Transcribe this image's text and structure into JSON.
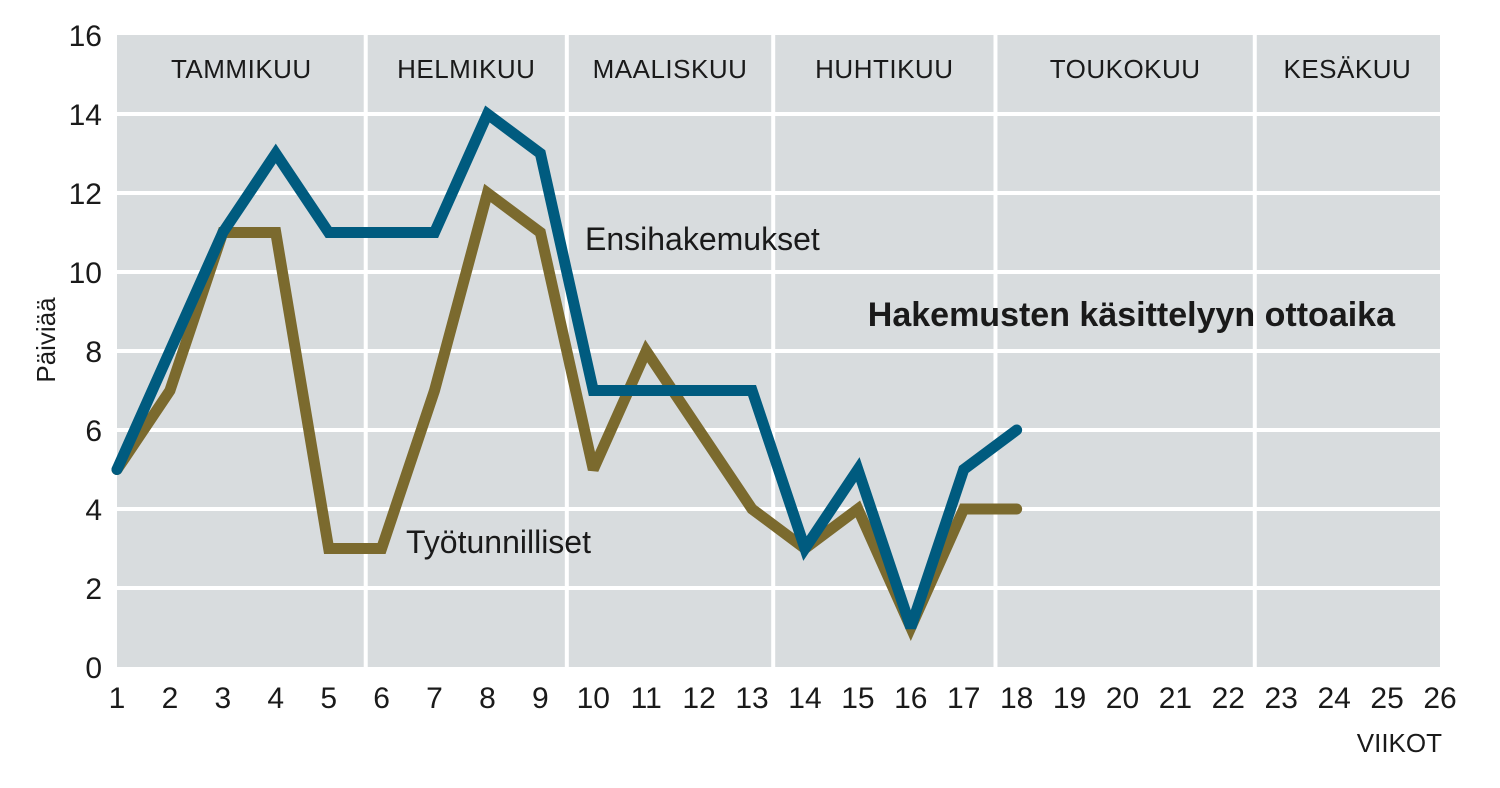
{
  "chart_data": {
    "type": "line",
    "title": "Hakemusten käsittelyyn ottoaika",
    "xlabel": "VIIKOT",
    "ylabel": "Päiviää",
    "xlim": [
      1,
      26
    ],
    "ylim": [
      0,
      16
    ],
    "x_ticks": [
      1,
      2,
      3,
      4,
      5,
      6,
      7,
      8,
      9,
      10,
      11,
      12,
      13,
      14,
      15,
      16,
      17,
      18,
      19,
      20,
      21,
      22,
      23,
      24,
      25,
      26
    ],
    "y_ticks": [
      0,
      2,
      4,
      6,
      8,
      10,
      12,
      14,
      16
    ],
    "grid": true,
    "months": [
      {
        "label": "TAMMIKUU",
        "start": 1,
        "end": 5.7
      },
      {
        "label": "HELMIKUU",
        "start": 5.7,
        "end": 9.5
      },
      {
        "label": "MAALISKUU",
        "start": 9.5,
        "end": 13.4
      },
      {
        "label": "HUHTIKUU",
        "start": 13.4,
        "end": 17.6
      },
      {
        "label": "TOUKOKUU",
        "start": 17.6,
        "end": 22.5
      },
      {
        "label": "KESÄKUU",
        "start": 22.5,
        "end": 26
      }
    ],
    "series": [
      {
        "name": "Ensihakemukset",
        "color": "#005b7f",
        "x": [
          1,
          2,
          3,
          4,
          5,
          6,
          7,
          8,
          9,
          10,
          11,
          12,
          13,
          14,
          15,
          16,
          17,
          18
        ],
        "values": [
          5,
          8,
          11,
          13,
          11,
          11,
          11,
          14,
          13,
          7,
          7,
          7,
          7,
          3,
          5,
          1,
          5,
          6
        ]
      },
      {
        "name": "Työtunnilliset",
        "color": "#7b6a2e",
        "x": [
          1,
          2,
          3,
          4,
          5,
          6,
          7,
          8,
          9,
          10,
          11,
          12,
          13,
          14,
          15,
          16,
          17,
          18
        ],
        "values": [
          5,
          7,
          11,
          11,
          3,
          3,
          7,
          12,
          11,
          5,
          8,
          6,
          4,
          3,
          4,
          1,
          4,
          4
        ]
      }
    ],
    "colors": {
      "plot_bg": "#d8dcde",
      "grid": "#ffffff"
    }
  }
}
